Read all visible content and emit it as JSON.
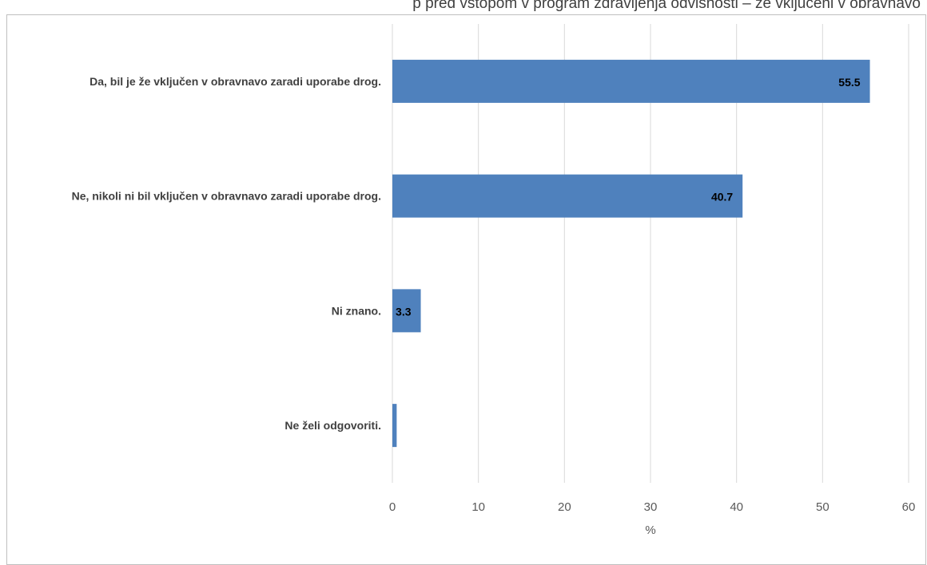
{
  "chart_data": {
    "type": "bar",
    "orientation": "horizontal",
    "title": "p  pred vstopom v program zdravljenja odvisnosti – že vključeni v obravnavo",
    "categories": [
      "Da, bil je že vključen v obravnavo zaradi uporabe drog.",
      "Ne, nikoli ni bil vključen v obravnavo zaradi uporabe drog.",
      "Ni znano.",
      "Ne želi odgovoriti."
    ],
    "values": [
      55.5,
      40.7,
      3.3,
      0.5
    ],
    "data_labels": [
      "55.5",
      "40.7",
      "3.3",
      ""
    ],
    "xlabel": "%",
    "ylabel": "",
    "xlim": [
      0,
      60
    ],
    "x_ticks": [
      0,
      10,
      20,
      30,
      40,
      50,
      60
    ],
    "grid": "vertical",
    "legend": "none",
    "colors": {
      "bar": "#4f81bd",
      "grid": "#d9d9d9",
      "text": "#404040",
      "tick": "#595959"
    }
  }
}
